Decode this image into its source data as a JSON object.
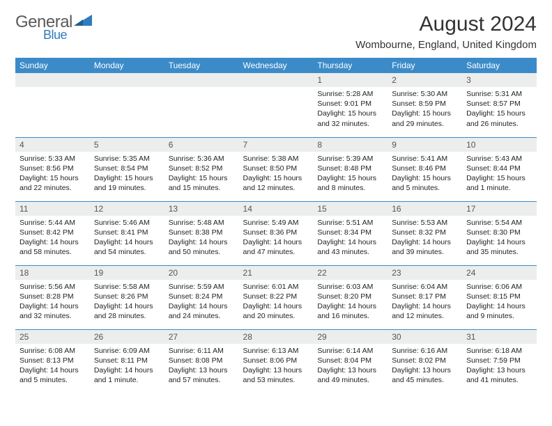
{
  "logo": {
    "text1": "General",
    "text2": "Blue",
    "tri_color": "#2e7bbf"
  },
  "title": "August 2024",
  "location": "Wombourne, England, United Kingdom",
  "header_bg": "#3b8bc9",
  "daynum_bg": "#eceded",
  "days_of_week": [
    "Sunday",
    "Monday",
    "Tuesday",
    "Wednesday",
    "Thursday",
    "Friday",
    "Saturday"
  ],
  "weeks": [
    [
      null,
      null,
      null,
      null,
      {
        "n": "1",
        "sr": "5:28 AM",
        "ss": "9:01 PM",
        "dl": "15 hours and 32 minutes."
      },
      {
        "n": "2",
        "sr": "5:30 AM",
        "ss": "8:59 PM",
        "dl": "15 hours and 29 minutes."
      },
      {
        "n": "3",
        "sr": "5:31 AM",
        "ss": "8:57 PM",
        "dl": "15 hours and 26 minutes."
      }
    ],
    [
      {
        "n": "4",
        "sr": "5:33 AM",
        "ss": "8:56 PM",
        "dl": "15 hours and 22 minutes."
      },
      {
        "n": "5",
        "sr": "5:35 AM",
        "ss": "8:54 PM",
        "dl": "15 hours and 19 minutes."
      },
      {
        "n": "6",
        "sr": "5:36 AM",
        "ss": "8:52 PM",
        "dl": "15 hours and 15 minutes."
      },
      {
        "n": "7",
        "sr": "5:38 AM",
        "ss": "8:50 PM",
        "dl": "15 hours and 12 minutes."
      },
      {
        "n": "8",
        "sr": "5:39 AM",
        "ss": "8:48 PM",
        "dl": "15 hours and 8 minutes."
      },
      {
        "n": "9",
        "sr": "5:41 AM",
        "ss": "8:46 PM",
        "dl": "15 hours and 5 minutes."
      },
      {
        "n": "10",
        "sr": "5:43 AM",
        "ss": "8:44 PM",
        "dl": "15 hours and 1 minute."
      }
    ],
    [
      {
        "n": "11",
        "sr": "5:44 AM",
        "ss": "8:42 PM",
        "dl": "14 hours and 58 minutes."
      },
      {
        "n": "12",
        "sr": "5:46 AM",
        "ss": "8:41 PM",
        "dl": "14 hours and 54 minutes."
      },
      {
        "n": "13",
        "sr": "5:48 AM",
        "ss": "8:38 PM",
        "dl": "14 hours and 50 minutes."
      },
      {
        "n": "14",
        "sr": "5:49 AM",
        "ss": "8:36 PM",
        "dl": "14 hours and 47 minutes."
      },
      {
        "n": "15",
        "sr": "5:51 AM",
        "ss": "8:34 PM",
        "dl": "14 hours and 43 minutes."
      },
      {
        "n": "16",
        "sr": "5:53 AM",
        "ss": "8:32 PM",
        "dl": "14 hours and 39 minutes."
      },
      {
        "n": "17",
        "sr": "5:54 AM",
        "ss": "8:30 PM",
        "dl": "14 hours and 35 minutes."
      }
    ],
    [
      {
        "n": "18",
        "sr": "5:56 AM",
        "ss": "8:28 PM",
        "dl": "14 hours and 32 minutes."
      },
      {
        "n": "19",
        "sr": "5:58 AM",
        "ss": "8:26 PM",
        "dl": "14 hours and 28 minutes."
      },
      {
        "n": "20",
        "sr": "5:59 AM",
        "ss": "8:24 PM",
        "dl": "14 hours and 24 minutes."
      },
      {
        "n": "21",
        "sr": "6:01 AM",
        "ss": "8:22 PM",
        "dl": "14 hours and 20 minutes."
      },
      {
        "n": "22",
        "sr": "6:03 AM",
        "ss": "8:20 PM",
        "dl": "14 hours and 16 minutes."
      },
      {
        "n": "23",
        "sr": "6:04 AM",
        "ss": "8:17 PM",
        "dl": "14 hours and 12 minutes."
      },
      {
        "n": "24",
        "sr": "6:06 AM",
        "ss": "8:15 PM",
        "dl": "14 hours and 9 minutes."
      }
    ],
    [
      {
        "n": "25",
        "sr": "6:08 AM",
        "ss": "8:13 PM",
        "dl": "14 hours and 5 minutes."
      },
      {
        "n": "26",
        "sr": "6:09 AM",
        "ss": "8:11 PM",
        "dl": "14 hours and 1 minute."
      },
      {
        "n": "27",
        "sr": "6:11 AM",
        "ss": "8:08 PM",
        "dl": "13 hours and 57 minutes."
      },
      {
        "n": "28",
        "sr": "6:13 AM",
        "ss": "8:06 PM",
        "dl": "13 hours and 53 minutes."
      },
      {
        "n": "29",
        "sr": "6:14 AM",
        "ss": "8:04 PM",
        "dl": "13 hours and 49 minutes."
      },
      {
        "n": "30",
        "sr": "6:16 AM",
        "ss": "8:02 PM",
        "dl": "13 hours and 45 minutes."
      },
      {
        "n": "31",
        "sr": "6:18 AM",
        "ss": "7:59 PM",
        "dl": "13 hours and 41 minutes."
      }
    ]
  ],
  "labels": {
    "sunrise": "Sunrise: ",
    "sunset": "Sunset: ",
    "daylight": "Daylight: "
  }
}
